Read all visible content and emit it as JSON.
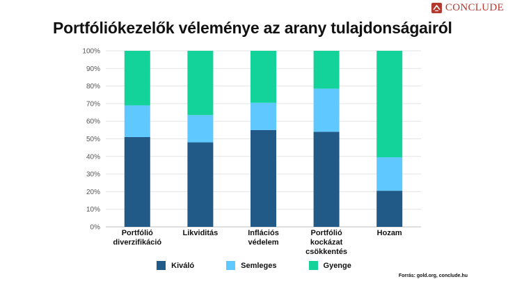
{
  "header": {
    "title": "Portfóliókezelők véleménye az arany tulajdonságairól",
    "brand": "CONCLUDE",
    "source": "Forrás: gold.org, conclude.hu"
  },
  "colors": {
    "excellent": "#215a86",
    "neutral": "#5ec8ff",
    "weak": "#13d39a",
    "brand": "#b5382e"
  },
  "chart_data": {
    "type": "bar",
    "stacked": true,
    "categories": [
      [
        "Portfólió",
        "diverzifikáció"
      ],
      [
        "Likviditás"
      ],
      [
        "Inflációs",
        "védelem"
      ],
      [
        "Portfólió",
        "kockázat",
        "csökkentés"
      ],
      [
        "Hozam"
      ]
    ],
    "series": [
      {
        "name": "Kiváló",
        "color": "#215a86",
        "values": [
          51,
          48,
          55,
          54,
          20.5
        ]
      },
      {
        "name": "Semleges",
        "color": "#5ec8ff",
        "values": [
          18,
          15.5,
          15.5,
          24.5,
          19
        ]
      },
      {
        "name": "Gyenge",
        "color": "#13d39a",
        "values": [
          31,
          36.5,
          29.5,
          21.5,
          60.5
        ]
      }
    ],
    "yticks": [
      "0%",
      "10%",
      "20%",
      "30%",
      "40%",
      "50%",
      "60%",
      "70%",
      "80%",
      "90%",
      "100%"
    ],
    "ylim": [
      0,
      100
    ],
    "grid": true,
    "legend_position": "bottom"
  }
}
